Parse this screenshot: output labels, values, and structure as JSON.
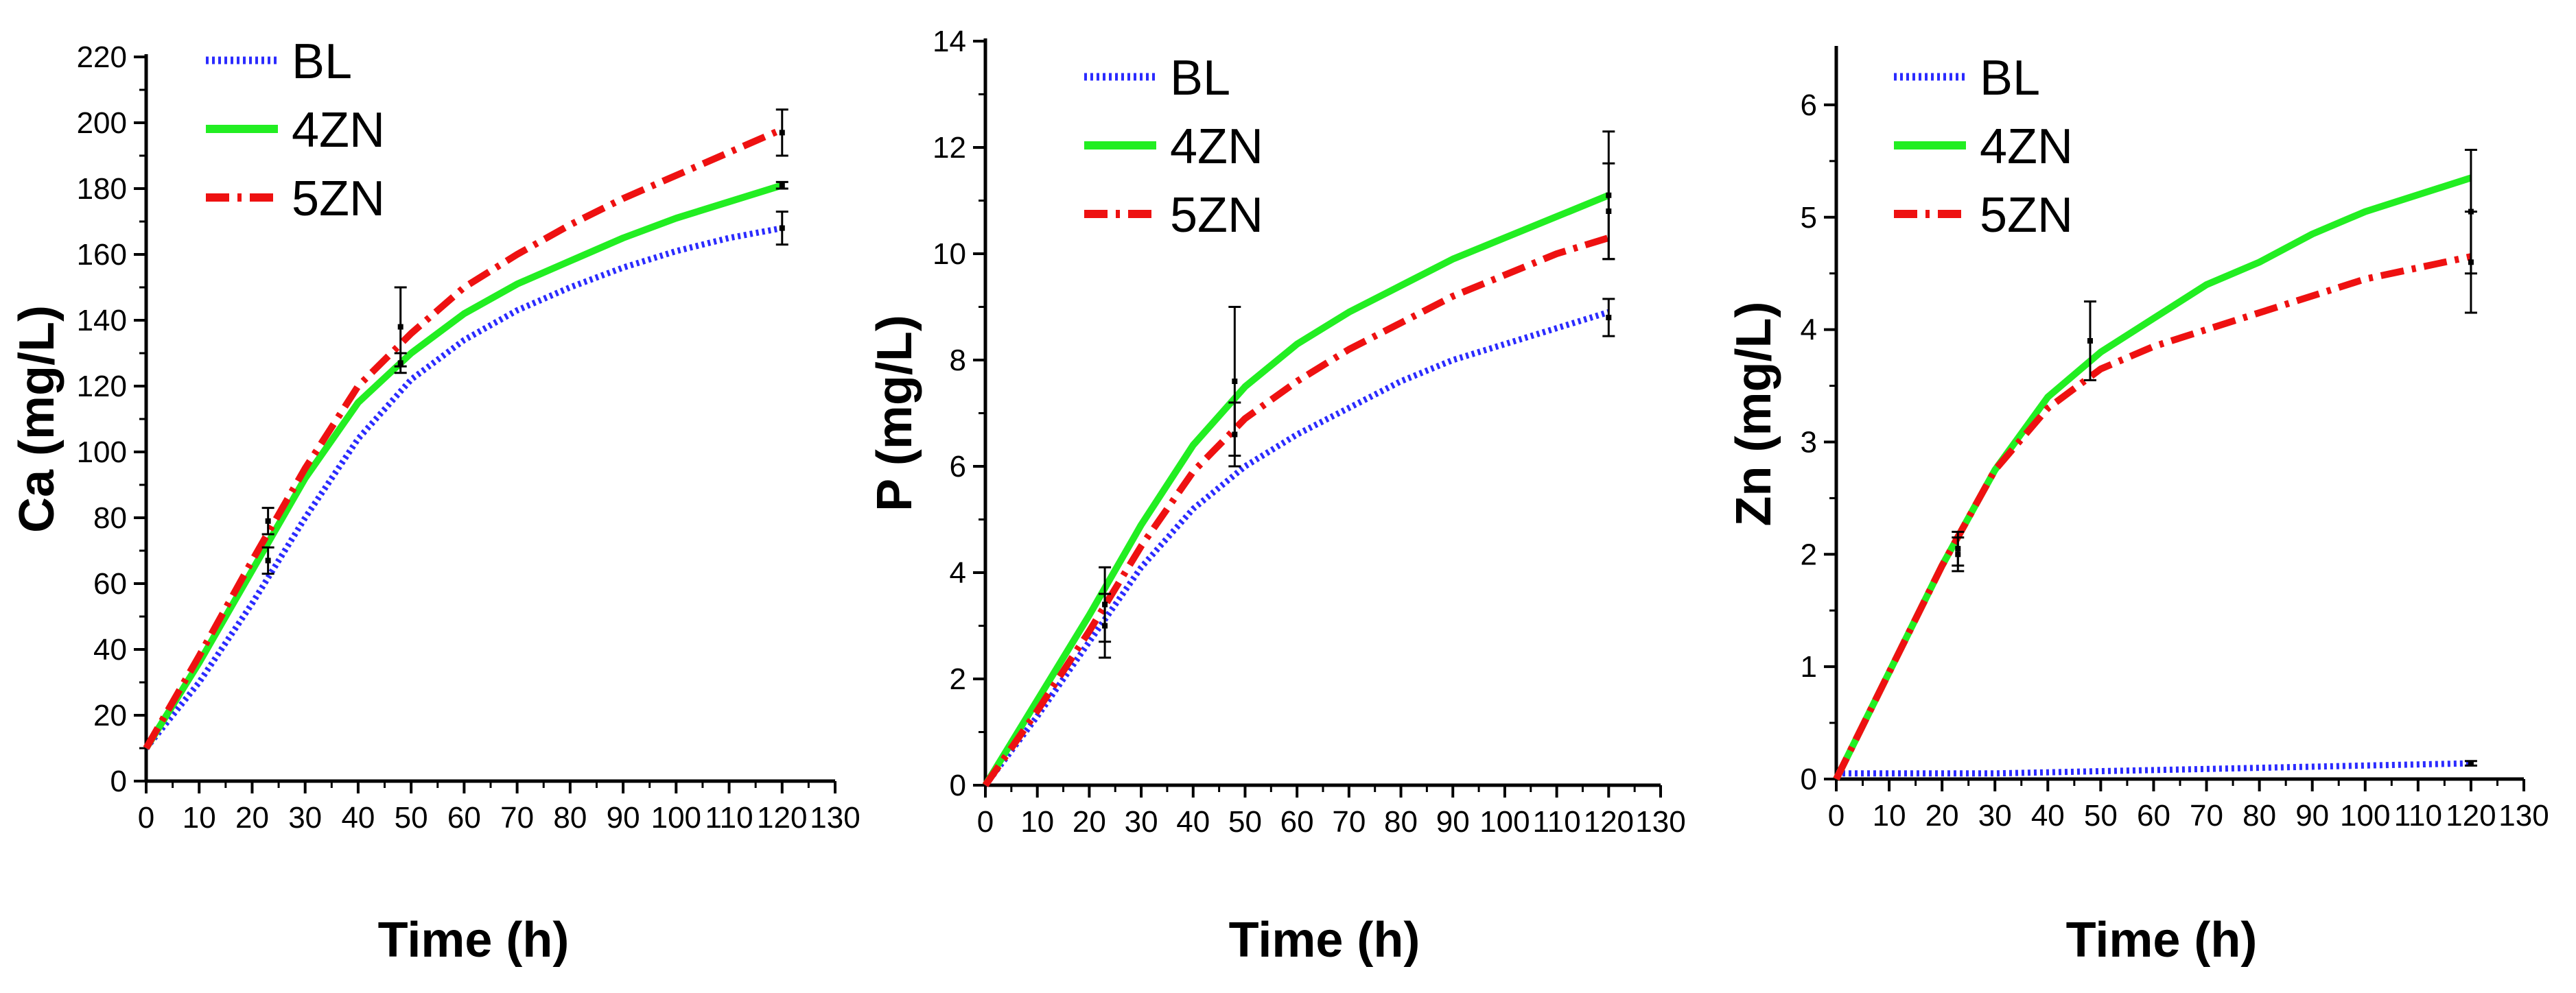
{
  "colors": {
    "BL": "#2b2bff",
    "4ZN": "#22ee22",
    "5ZN": "#ee1111",
    "axis": "#000000",
    "errorbar": "#000000"
  },
  "chart_data": [
    {
      "type": "line",
      "xlabel": "Time (h)",
      "ylabel": "Ca  (mg/L)",
      "xlim": [
        0,
        130
      ],
      "ylim": [
        0,
        220
      ],
      "xticks": [
        0,
        10,
        20,
        30,
        40,
        50,
        60,
        70,
        80,
        90,
        100,
        110,
        120,
        130
      ],
      "yticks": [
        0,
        20,
        40,
        60,
        80,
        100,
        120,
        140,
        160,
        180,
        200,
        220
      ],
      "legend": {
        "placement": "top-left",
        "entries": [
          "BL",
          "4ZN",
          "5ZN"
        ]
      },
      "series": [
        {
          "name": "BL",
          "style": "dotted",
          "x": [
            0,
            10,
            20,
            30,
            40,
            50,
            60,
            70,
            80,
            90,
            100,
            110,
            120
          ],
          "y": [
            10,
            30,
            54,
            80,
            104,
            122,
            134,
            143,
            150,
            156,
            161,
            165,
            168
          ]
        },
        {
          "name": "4ZN",
          "style": "solid",
          "x": [
            0,
            10,
            20,
            30,
            40,
            50,
            60,
            70,
            80,
            90,
            100,
            110,
            120
          ],
          "y": [
            10,
            36,
            64,
            92,
            115,
            130,
            142,
            151,
            158,
            165,
            171,
            176,
            181
          ]
        },
        {
          "name": "5ZN",
          "style": "dashdot",
          "x": [
            0,
            10,
            20,
            30,
            40,
            50,
            60,
            70,
            80,
            90,
            100,
            110,
            120
          ],
          "y": [
            10,
            38,
            67,
            95,
            120,
            136,
            150,
            160,
            169,
            177,
            184,
            191,
            198
          ]
        }
      ],
      "errorbars": [
        {
          "x": 23,
          "y": 67,
          "err": 4
        },
        {
          "x": 23,
          "y": 79,
          "err": 4
        },
        {
          "x": 48,
          "y": 127,
          "err": 3
        },
        {
          "x": 48,
          "y": 138,
          "err": 12
        },
        {
          "x": 120,
          "y": 168,
          "err": 5
        },
        {
          "x": 120,
          "y": 181,
          "err": 1
        },
        {
          "x": 120,
          "y": 197,
          "err": 7
        }
      ]
    },
    {
      "type": "line",
      "xlabel": "Time (h)",
      "ylabel": "P  (mg/L)",
      "xlim": [
        0,
        130
      ],
      "ylim": [
        0,
        14
      ],
      "xticks": [
        0,
        10,
        20,
        30,
        40,
        50,
        60,
        70,
        80,
        90,
        100,
        110,
        120,
        130
      ],
      "yticks": [
        0,
        2,
        4,
        6,
        8,
        10,
        12,
        14
      ],
      "legend": {
        "placement": "top-left",
        "entries": [
          "BL",
          "4ZN",
          "5ZN"
        ]
      },
      "series": [
        {
          "name": "BL",
          "style": "dotted",
          "x": [
            0,
            10,
            20,
            30,
            40,
            50,
            60,
            70,
            80,
            90,
            100,
            110,
            120
          ],
          "y": [
            0.0,
            1.3,
            2.7,
            4.1,
            5.2,
            6.0,
            6.6,
            7.1,
            7.6,
            8.0,
            8.3,
            8.6,
            8.9
          ]
        },
        {
          "name": "4ZN",
          "style": "solid",
          "x": [
            0,
            10,
            20,
            30,
            40,
            50,
            60,
            70,
            80,
            90,
            100,
            110,
            120
          ],
          "y": [
            0.0,
            1.6,
            3.2,
            4.9,
            6.4,
            7.5,
            8.3,
            8.9,
            9.4,
            9.9,
            10.3,
            10.7,
            11.1
          ]
        },
        {
          "name": "5ZN",
          "style": "dashdot",
          "x": [
            0,
            10,
            20,
            30,
            40,
            50,
            60,
            70,
            80,
            90,
            100,
            110,
            120
          ],
          "y": [
            0.0,
            1.4,
            2.9,
            4.5,
            5.9,
            6.9,
            7.6,
            8.2,
            8.7,
            9.2,
            9.6,
            10.0,
            10.3
          ]
        }
      ],
      "errorbars": [
        {
          "x": 23,
          "y": 3.0,
          "err": 0.6
        },
        {
          "x": 23,
          "y": 3.4,
          "err": 0.7
        },
        {
          "x": 48,
          "y": 6.6,
          "err": 0.6
        },
        {
          "x": 48,
          "y": 7.6,
          "err": 1.4
        },
        {
          "x": 120,
          "y": 8.8,
          "err": 0.35
        },
        {
          "x": 120,
          "y": 10.8,
          "err": 0.9
        },
        {
          "x": 120,
          "y": 11.1,
          "err": 1.2
        }
      ]
    },
    {
      "type": "line",
      "xlabel": "Time (h)",
      "ylabel": "Zn  (mg/L)",
      "xlim": [
        0,
        130
      ],
      "ylim": [
        0,
        6.5
      ],
      "xticks": [
        0,
        10,
        20,
        30,
        40,
        50,
        60,
        70,
        80,
        90,
        100,
        110,
        120,
        130
      ],
      "yticks": [
        0,
        1,
        2,
        3,
        4,
        5,
        6
      ],
      "legend": {
        "placement": "top-left",
        "entries": [
          "BL",
          "4ZN",
          "5ZN"
        ]
      },
      "series": [
        {
          "name": "BL",
          "style": "dotted",
          "x": [
            0,
            10,
            20,
            30,
            40,
            50,
            60,
            70,
            80,
            90,
            100,
            110,
            120
          ],
          "y": [
            0.05,
            0.05,
            0.05,
            0.05,
            0.06,
            0.07,
            0.08,
            0.09,
            0.1,
            0.11,
            0.12,
            0.13,
            0.14
          ]
        },
        {
          "name": "4ZN",
          "style": "solid",
          "x": [
            0,
            10,
            20,
            30,
            40,
            50,
            60,
            70,
            80,
            90,
            100,
            110,
            120
          ],
          "y": [
            0.0,
            0.95,
            1.9,
            2.75,
            3.4,
            3.8,
            4.1,
            4.4,
            4.6,
            4.85,
            5.05,
            5.2,
            5.35
          ]
        },
        {
          "name": "5ZN",
          "style": "dashdot",
          "x": [
            0,
            10,
            20,
            30,
            40,
            50,
            60,
            70,
            80,
            90,
            100,
            110,
            120
          ],
          "y": [
            0.0,
            0.95,
            1.9,
            2.75,
            3.3,
            3.65,
            3.85,
            4.0,
            4.15,
            4.3,
            4.45,
            4.55,
            4.65
          ]
        }
      ],
      "errorbars": [
        {
          "x": 23,
          "y": 2.0,
          "err": 0.15
        },
        {
          "x": 23,
          "y": 2.05,
          "err": 0.15
        },
        {
          "x": 48,
          "y": 3.9,
          "err": 0.35
        },
        {
          "x": 120,
          "y": 5.05,
          "err": 0.55
        },
        {
          "x": 120,
          "y": 4.6,
          "err": 0.45
        },
        {
          "x": 120,
          "y": 0.14,
          "err": 0.02
        }
      ]
    }
  ]
}
